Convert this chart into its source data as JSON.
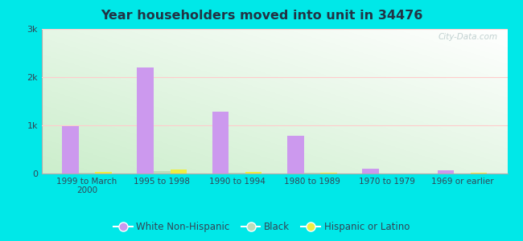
{
  "title": "Year householders moved into unit in 34476",
  "categories": [
    "1999 to March\n2000",
    "1995 to 1998",
    "1990 to 1994",
    "1980 to 1989",
    "1970 to 1979",
    "1969 or earlier"
  ],
  "white_non_hispanic": [
    980,
    2200,
    1280,
    780,
    100,
    60
  ],
  "black": [
    10,
    55,
    25,
    10,
    5,
    5
  ],
  "hispanic_or_latino": [
    40,
    90,
    30,
    10,
    5,
    25
  ],
  "white_color": "#cc99ee",
  "black_color": "#bbddbb",
  "hispanic_color": "#eeee44",
  "background_outer": "#00e8e8",
  "title_color": "#223344",
  "label_color": "#334455",
  "ylim": [
    0,
    3000
  ],
  "yticks": [
    0,
    1000,
    2000,
    3000
  ],
  "ytick_labels": [
    "0",
    "1k",
    "2k",
    "3k"
  ],
  "bar_width": 0.22,
  "watermark": "City-Data.com"
}
